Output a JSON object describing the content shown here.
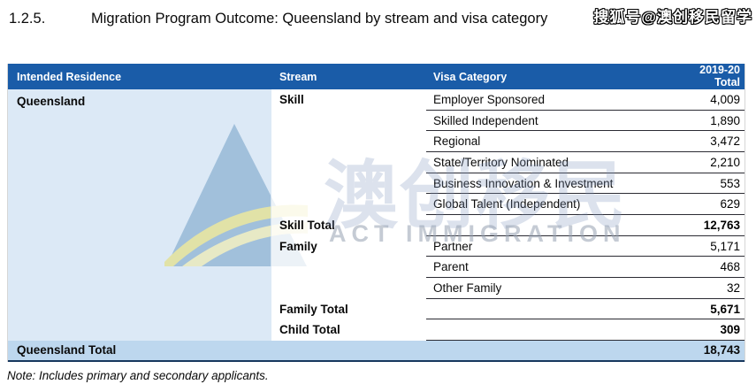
{
  "header": {
    "section_number": "1.2.5.",
    "title": "Migration Program Outcome: Queensland by stream and visa category"
  },
  "watermarks": {
    "corner": "搜狐号@澳创移民留学",
    "center_cn": "澳创移民",
    "center_en": "ACT IMMIGRATION",
    "logo_icon": "act-immigration-triangle-logo"
  },
  "colors": {
    "header_bg": "#1A5CA8",
    "header_text": "#FFFFFF",
    "intended_residence_bg": "#DCE9F6",
    "grand_total_bg": "#BDD7EE",
    "table_bottom_border": "#17375E",
    "row_line": "#2B2B33"
  },
  "table": {
    "headers": [
      "Intended Residence",
      "Stream",
      "Visa Category",
      "2019-20",
      "Total"
    ],
    "intended_residence": "Queensland",
    "rows": [
      {
        "stream": "Skill",
        "visa": "Employer Sponsored",
        "value": "4,009",
        "total": false
      },
      {
        "stream": "",
        "visa": "Skilled Independent",
        "value": "1,890",
        "total": false
      },
      {
        "stream": "",
        "visa": "Regional",
        "value": "3,472",
        "total": false
      },
      {
        "stream": "",
        "visa": "State/Territory Nominated",
        "value": "2,210",
        "total": false
      },
      {
        "stream": "",
        "visa": "Business Innovation & Investment",
        "value": "553",
        "total": false
      },
      {
        "stream": "",
        "visa": "Global Talent (Independent)",
        "value": "629",
        "total": false
      },
      {
        "stream": "Skill Total",
        "visa": "",
        "value": "12,763",
        "total": true
      },
      {
        "stream": "Family",
        "visa": "Partner",
        "value": "5,171",
        "total": false
      },
      {
        "stream": "",
        "visa": "Parent",
        "value": "468",
        "total": false
      },
      {
        "stream": "",
        "visa": "Other Family",
        "value": "32",
        "total": false
      },
      {
        "stream": "Family Total",
        "visa": "",
        "value": "5,671",
        "total": true
      },
      {
        "stream": "Child Total",
        "visa": "",
        "value": "309",
        "total": true
      }
    ],
    "grand_total": {
      "label": "Queensland Total",
      "value": "18,743"
    }
  },
  "footer": {
    "note": "Note: Includes primary and secondary applicants."
  }
}
